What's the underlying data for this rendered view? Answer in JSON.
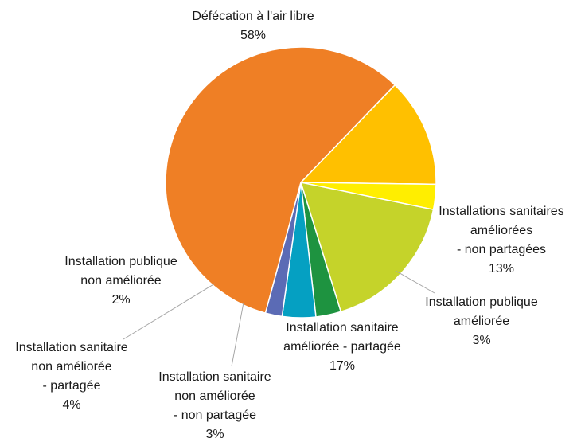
{
  "chart_data": {
    "type": "pie",
    "title": "",
    "legend": "none",
    "slices": [
      {
        "label_lines": [
          "Installations sanitaires",
          "améliorées",
          "- non partagées"
        ],
        "value": 13,
        "value_label": "13%",
        "color": "#ffc000"
      },
      {
        "label_lines": [
          "Installation publique",
          "améliorée"
        ],
        "value": 3,
        "value_label": "3%",
        "color": "#ffee00"
      },
      {
        "label_lines": [
          "Installation sanitaire",
          "améliorée - partagée"
        ],
        "value": 17,
        "value_label": "17%",
        "color": "#c5d32a"
      },
      {
        "label_lines": [
          "Installation  sanitaire",
          "non améliorée",
          "- non partagée"
        ],
        "value": 3,
        "value_label": "3%",
        "color": "#1e9340"
      },
      {
        "label_lines": [
          "Installation  sanitaire",
          "non améliorée",
          "- partagée"
        ],
        "value": 4,
        "value_label": "4%",
        "color": "#05a0c2"
      },
      {
        "label_lines": [
          "Installation  publique",
          "non améliorée"
        ],
        "value": 2,
        "value_label": "2%",
        "color": "#5b6bb5"
      },
      {
        "label_lines": [
          "Défécation à l'air libre"
        ],
        "value": 58,
        "value_label": "58%",
        "color": "#ef7f25"
      }
    ]
  }
}
